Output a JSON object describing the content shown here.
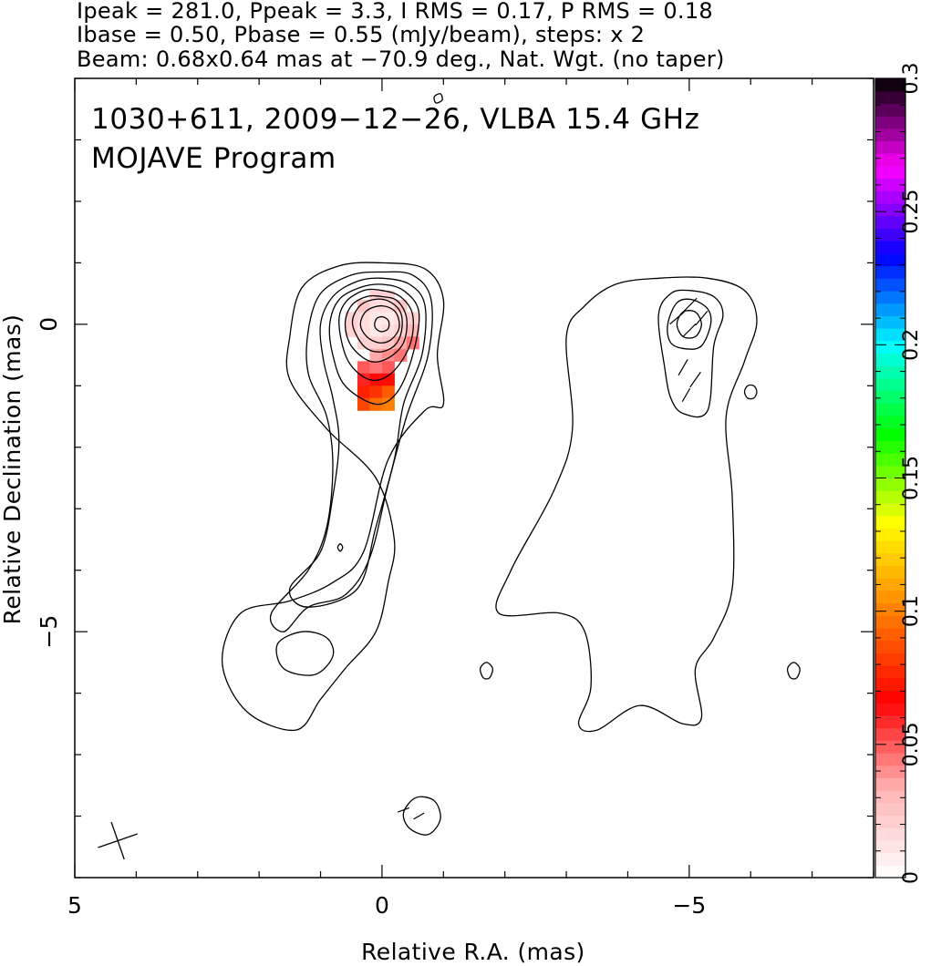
{
  "header": {
    "line1": "Ipeak = 281.0, Ppeak = 3.3, I RMS = 0.17, P RMS = 0.18",
    "line2": "Ibase = 0.50, Pbase = 0.55 (mJy/beam), steps: x 2",
    "line3": "Beam: 0.68x0.64 mas at −70.9 deg., Nat. Wgt. (no taper)"
  },
  "chart_data": {
    "type": "contour",
    "title": "1030+611, 2009−12−26, VLBA 15.4 GHz",
    "subtitle": "MOJAVE Program",
    "xlabel": "Relative R.A. (mas)",
    "ylabel": "Relative Declination (mas)",
    "xlim": [
      5,
      -8
    ],
    "ylim": [
      -9,
      4
    ],
    "x_ticks": [
      {
        "value": 5,
        "label": "5"
      },
      {
        "value": 0,
        "label": "0"
      },
      {
        "value": -5,
        "label": "−5"
      }
    ],
    "y_ticks": [
      {
        "value": 0,
        "label": "0"
      },
      {
        "value": -5,
        "label": "−5"
      }
    ],
    "colorbar": {
      "min": 0,
      "max": 0.3,
      "ticks": [
        {
          "value": 0,
          "label": "0"
        },
        {
          "value": 0.05,
          "label": "0.05"
        },
        {
          "value": 0.1,
          "label": "0.1"
        },
        {
          "value": 0.15,
          "label": "0.15"
        },
        {
          "value": 0.2,
          "label": "0.2"
        },
        {
          "value": 0.25,
          "label": "0.25"
        },
        {
          "value": 0.3,
          "label": "0.3"
        }
      ],
      "colors": [
        "#ffffff",
        "#ffb3b3",
        "#ff0000",
        "#ff8000",
        "#ffff00",
        "#00ff00",
        "#00ffff",
        "#0000ff",
        "#ff00ff",
        "#000000"
      ]
    },
    "panels": [
      {
        "name": "total_intensity",
        "center": [
          0,
          0
        ],
        "peak": 281.0,
        "rms": 0.17,
        "base": 0.5
      },
      {
        "name": "polarization",
        "center": [
          -5,
          0
        ],
        "peak": 3.3,
        "rms": 0.18,
        "base": 0.55
      }
    ],
    "intensity_contours": [
      {
        "level": 0.5,
        "points": [
          [
            1.5,
            -0.2
          ],
          [
            1.3,
            0.6
          ],
          [
            0.7,
            0.95
          ],
          [
            0,
            1.0
          ],
          [
            -0.7,
            0.9
          ],
          [
            -1.0,
            0.4
          ],
          [
            -0.9,
            -0.5
          ],
          [
            -1.0,
            -1.3
          ],
          [
            -0.7,
            -1.4
          ],
          [
            -0.1,
            -2.2
          ],
          [
            0.3,
            -3.7
          ],
          [
            0.8,
            -4.2
          ],
          [
            1.5,
            -4.5
          ],
          [
            2.3,
            -4.7
          ],
          [
            2.6,
            -5.5
          ],
          [
            2.2,
            -6.3
          ],
          [
            1.4,
            -6.6
          ],
          [
            1.0,
            -6.1
          ],
          [
            0.6,
            -5.6
          ],
          [
            0.1,
            -5.0
          ],
          [
            -0.1,
            -4.2
          ],
          [
            -0.2,
            -3.5
          ],
          [
            0.1,
            -2.5
          ],
          [
            0.9,
            -1.7
          ],
          [
            1.5,
            -0.9
          ]
        ]
      },
      {
        "level": 1.0,
        "points": [
          [
            1.2,
            -0.1
          ],
          [
            1.0,
            0.5
          ],
          [
            0.5,
            0.8
          ],
          [
            0,
            0.85
          ],
          [
            -0.5,
            0.8
          ],
          [
            -0.8,
            0.4
          ],
          [
            -0.75,
            -0.5
          ],
          [
            -0.4,
            -1.5
          ],
          [
            -0.1,
            -2.6
          ],
          [
            0.2,
            -3.8
          ],
          [
            0.6,
            -4.4
          ],
          [
            1.2,
            -4.6
          ],
          [
            1.6,
            -5.0
          ],
          [
            1.8,
            -4.7
          ],
          [
            1.2,
            -4.0
          ],
          [
            0.9,
            -3.3
          ],
          [
            0.8,
            -2.3
          ],
          [
            0.9,
            -1.5
          ],
          [
            1.2,
            -0.8
          ]
        ]
      },
      {
        "level": 2.0,
        "points": [
          [
            1.0,
            0
          ],
          [
            0.8,
            0.45
          ],
          [
            0.4,
            0.7
          ],
          [
            0,
            0.75
          ],
          [
            -0.45,
            0.65
          ],
          [
            -0.7,
            0.3
          ],
          [
            -0.65,
            -0.5
          ],
          [
            -0.35,
            -1.3
          ],
          [
            -0.2,
            -2.2
          ],
          [
            0.1,
            -3.3
          ],
          [
            0.4,
            -4.3
          ],
          [
            1.2,
            -4.6
          ],
          [
            1.5,
            -4.3
          ],
          [
            1.0,
            -3.7
          ],
          [
            0.8,
            -2.8
          ],
          [
            0.7,
            -1.9
          ],
          [
            0.8,
            -1.2
          ],
          [
            0.95,
            -0.6
          ]
        ]
      },
      {
        "level": 4.0,
        "points": [
          [
            0.85,
            0
          ],
          [
            0.7,
            0.4
          ],
          [
            0.35,
            0.6
          ],
          [
            0,
            0.65
          ],
          [
            -0.35,
            0.55
          ],
          [
            -0.6,
            0.2
          ],
          [
            -0.5,
            -0.5
          ],
          [
            -0.25,
            -1.1
          ],
          [
            0.1,
            -1.3
          ],
          [
            0.6,
            -1.0
          ],
          [
            0.8,
            -0.5
          ]
        ]
      },
      {
        "level": 8.0,
        "points": [
          [
            0.7,
            0
          ],
          [
            0.6,
            0.35
          ],
          [
            0.3,
            0.55
          ],
          [
            0,
            0.55
          ],
          [
            -0.3,
            0.45
          ],
          [
            -0.5,
            0.15
          ],
          [
            -0.45,
            -0.35
          ],
          [
            -0.15,
            -0.8
          ],
          [
            0.2,
            -0.9
          ],
          [
            0.55,
            -0.6
          ]
        ]
      },
      {
        "level": 16.0,
        "points": [
          [
            0.6,
            0
          ],
          [
            0.5,
            0.3
          ],
          [
            0.25,
            0.45
          ],
          [
            0,
            0.45
          ],
          [
            -0.25,
            0.38
          ],
          [
            -0.4,
            0.1
          ],
          [
            -0.35,
            -0.3
          ],
          [
            -0.1,
            -0.55
          ],
          [
            0.2,
            -0.6
          ],
          [
            0.5,
            -0.35
          ]
        ]
      },
      {
        "level": 32.0,
        "points": [
          [
            0.48,
            0
          ],
          [
            0.38,
            0.28
          ],
          [
            0.15,
            0.4
          ],
          [
            -0.1,
            0.38
          ],
          [
            -0.3,
            0.2
          ],
          [
            -0.32,
            -0.1
          ],
          [
            -0.2,
            -0.35
          ],
          [
            0.05,
            -0.45
          ],
          [
            0.3,
            -0.35
          ]
        ]
      },
      {
        "level": 64.0,
        "points": [
          [
            0.35,
            0
          ],
          [
            0.25,
            0.22
          ],
          [
            0,
            0.3
          ],
          [
            -0.22,
            0.2
          ],
          [
            -0.28,
            -0.05
          ],
          [
            -0.15,
            -0.25
          ],
          [
            0.05,
            -0.3
          ],
          [
            0.25,
            -0.2
          ]
        ]
      },
      {
        "level": 128.0,
        "points": [
          [
            0.12,
            0
          ],
          [
            0.08,
            0.1
          ],
          [
            -0.02,
            0.12
          ],
          [
            -0.11,
            0.05
          ],
          [
            -0.1,
            -0.07
          ],
          [
            0,
            -0.12
          ],
          [
            0.09,
            -0.08
          ]
        ]
      }
    ],
    "intensity_islands": [
      {
        "points": [
          [
            0.72,
            -3.63
          ],
          [
            0.68,
            -3.57
          ],
          [
            0.64,
            -3.63
          ],
          [
            0.68,
            -3.69
          ]
        ]
      },
      {
        "points": [
          [
            -0.85,
            3.7
          ],
          [
            -0.95,
            3.75
          ],
          [
            -0.98,
            3.65
          ],
          [
            -0.88,
            3.6
          ]
        ]
      },
      {
        "points": [
          [
            1.3,
            -5.0
          ],
          [
            0.9,
            -5.1
          ],
          [
            0.8,
            -5.4
          ],
          [
            1.1,
            -5.7
          ],
          [
            1.6,
            -5.6
          ],
          [
            1.7,
            -5.2
          ]
        ]
      },
      {
        "points": [
          [
            -0.55,
            -7.7
          ],
          [
            -0.85,
            -7.75
          ],
          [
            -0.95,
            -8.05
          ],
          [
            -0.75,
            -8.3
          ],
          [
            -0.45,
            -8.2
          ],
          [
            -0.35,
            -7.95
          ]
        ]
      }
    ],
    "pol_contours": [
      {
        "level": 0.55,
        "points": [
          [
            -3.0,
            -0.2
          ],
          [
            -3.3,
            0.3
          ],
          [
            -3.8,
            0.65
          ],
          [
            -4.5,
            0.75
          ],
          [
            -5.3,
            0.75
          ],
          [
            -5.9,
            0.55
          ],
          [
            -6.1,
            0.05
          ],
          [
            -5.9,
            -0.6
          ],
          [
            -5.6,
            -1.5
          ],
          [
            -5.7,
            -2.8
          ],
          [
            -5.7,
            -4.3
          ],
          [
            -5.4,
            -5.1
          ],
          [
            -5.1,
            -5.6
          ],
          [
            -5.2,
            -6.4
          ],
          [
            -4.9,
            -6.5
          ],
          [
            -4.2,
            -6.2
          ],
          [
            -3.5,
            -6.6
          ],
          [
            -3.2,
            -6.5
          ],
          [
            -3.4,
            -5.9
          ],
          [
            -3.3,
            -5.0
          ],
          [
            -2.9,
            -4.7
          ],
          [
            -1.9,
            -4.7
          ],
          [
            -2.1,
            -4.0
          ],
          [
            -2.8,
            -2.7
          ],
          [
            -3.1,
            -1.7
          ]
        ]
      },
      {
        "level": 1.1,
        "points": [
          [
            -4.5,
            0.15
          ],
          [
            -4.7,
            0.5
          ],
          [
            -5.0,
            0.55
          ],
          [
            -5.4,
            0.45
          ],
          [
            -5.55,
            0.15
          ],
          [
            -5.4,
            -0.35
          ],
          [
            -5.3,
            -1.4
          ],
          [
            -4.9,
            -1.45
          ],
          [
            -4.7,
            -1.2
          ],
          [
            -4.6,
            -0.7
          ]
        ]
      },
      {
        "level": 2.2,
        "points": [
          [
            -4.65,
            0
          ],
          [
            -4.8,
            0.35
          ],
          [
            -5.05,
            0.4
          ],
          [
            -5.3,
            0.25
          ],
          [
            -5.35,
            0
          ],
          [
            -5.2,
            -0.35
          ],
          [
            -4.95,
            -0.4
          ],
          [
            -4.7,
            -0.3
          ]
        ]
      },
      {
        "level": 4.4,
        "points": [
          [
            -4.8,
            0
          ],
          [
            -4.9,
            0.2
          ],
          [
            -5.1,
            0.2
          ],
          [
            -5.2,
            0
          ],
          [
            -5.1,
            -0.2
          ],
          [
            -4.9,
            -0.2
          ]
        ]
      }
    ],
    "pol_islands": [
      {
        "points": [
          [
            -5.95,
            -1.0
          ],
          [
            -6.05,
            -1.0
          ],
          [
            -6.1,
            -1.1
          ],
          [
            -6.05,
            -1.2
          ],
          [
            -5.95,
            -1.2
          ],
          [
            -5.9,
            -1.1
          ]
        ]
      },
      {
        "points": [
          [
            -6.6,
            -5.6
          ],
          [
            -6.7,
            -5.5
          ],
          [
            -6.8,
            -5.6
          ],
          [
            -6.75,
            -5.75
          ],
          [
            -6.65,
            -5.75
          ]
        ]
      },
      {
        "points": [
          [
            -1.6,
            -5.6
          ],
          [
            -1.7,
            -5.5
          ],
          [
            -1.8,
            -5.6
          ],
          [
            -1.75,
            -5.75
          ],
          [
            -1.65,
            -5.75
          ]
        ]
      }
    ],
    "evpa_vectors": [
      {
        "x": -5.0,
        "y": 0.3,
        "angle": 45,
        "len": 0.35
      },
      {
        "x": -4.8,
        "y": 0.1,
        "angle": 40,
        "len": 0.3
      },
      {
        "x": -5.2,
        "y": 0.1,
        "angle": 50,
        "len": 0.3
      },
      {
        "x": -5.0,
        "y": -0.1,
        "angle": 45,
        "len": 0.3
      },
      {
        "x": -4.9,
        "y": -0.7,
        "angle": 60,
        "len": 0.3
      },
      {
        "x": -5.1,
        "y": -0.9,
        "angle": 55,
        "len": 0.3
      },
      {
        "x": -4.95,
        "y": -1.15,
        "angle": 60,
        "len": 0.25
      },
      {
        "x": -0.35,
        "y": -7.9,
        "angle": 20,
        "len": 0.2
      },
      {
        "x": -0.6,
        "y": -8.0,
        "angle": 30,
        "len": 0.2
      }
    ],
    "pol_pixels": [
      {
        "x": 0.1,
        "y": 0.45,
        "value": 0.02
      },
      {
        "x": -0.1,
        "y": 0.45,
        "value": 0.02
      },
      {
        "x": 0.3,
        "y": 0.3,
        "value": 0.025
      },
      {
        "x": 0.1,
        "y": 0.3,
        "value": 0.015
      },
      {
        "x": -0.1,
        "y": 0.3,
        "value": 0.015
      },
      {
        "x": -0.3,
        "y": 0.3,
        "value": 0.025
      },
      {
        "x": 0.5,
        "y": 0.1,
        "value": 0.02
      },
      {
        "x": 0.3,
        "y": 0.1,
        "value": 0.015
      },
      {
        "x": 0.1,
        "y": 0.1,
        "value": 0.01
      },
      {
        "x": -0.1,
        "y": 0.1,
        "value": 0.01
      },
      {
        "x": -0.3,
        "y": 0.1,
        "value": 0.015
      },
      {
        "x": -0.5,
        "y": 0.1,
        "value": 0.02
      },
      {
        "x": 0.5,
        "y": -0.1,
        "value": 0.02
      },
      {
        "x": 0.3,
        "y": -0.1,
        "value": 0.015
      },
      {
        "x": 0.1,
        "y": -0.1,
        "value": 0.01
      },
      {
        "x": -0.1,
        "y": -0.1,
        "value": 0.015
      },
      {
        "x": -0.3,
        "y": -0.1,
        "value": 0.02
      },
      {
        "x": -0.5,
        "y": -0.1,
        "value": 0.03
      },
      {
        "x": 0.3,
        "y": -0.3,
        "value": 0.02
      },
      {
        "x": 0.1,
        "y": -0.3,
        "value": 0.02
      },
      {
        "x": -0.1,
        "y": -0.3,
        "value": 0.025
      },
      {
        "x": -0.3,
        "y": -0.3,
        "value": 0.035
      },
      {
        "x": -0.5,
        "y": -0.3,
        "value": 0.045
      },
      {
        "x": 0.1,
        "y": -0.5,
        "value": 0.035
      },
      {
        "x": -0.1,
        "y": -0.5,
        "value": 0.04
      },
      {
        "x": -0.3,
        "y": -0.5,
        "value": 0.045
      },
      {
        "x": 0.3,
        "y": -0.7,
        "value": 0.05
      },
      {
        "x": 0.1,
        "y": -0.7,
        "value": 0.045
      },
      {
        "x": -0.1,
        "y": -0.7,
        "value": 0.05
      },
      {
        "x": 0.3,
        "y": -0.9,
        "value": 0.06
      },
      {
        "x": 0.1,
        "y": -0.9,
        "value": 0.065
      },
      {
        "x": -0.1,
        "y": -0.9,
        "value": 0.07
      },
      {
        "x": 0.3,
        "y": -1.1,
        "value": 0.075
      },
      {
        "x": 0.1,
        "y": -1.1,
        "value": 0.08
      },
      {
        "x": -0.1,
        "y": -1.1,
        "value": 0.09
      },
      {
        "x": 0.3,
        "y": -1.3,
        "value": 0.085
      },
      {
        "x": 0.1,
        "y": -1.3,
        "value": 0.095
      },
      {
        "x": -0.1,
        "y": -1.3,
        "value": 0.1
      }
    ],
    "beam": {
      "x": 4.3,
      "y": -8.4,
      "major": 0.68,
      "minor": 0.64,
      "pa": -70.9
    }
  }
}
